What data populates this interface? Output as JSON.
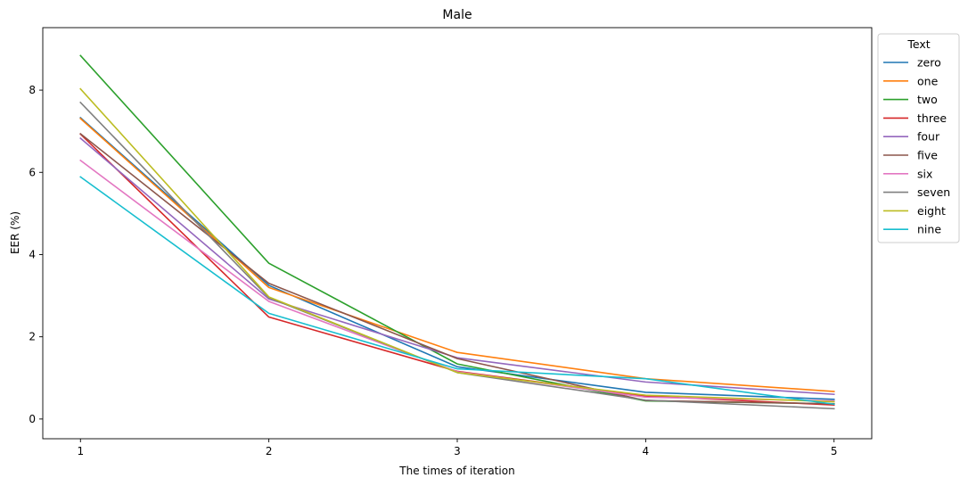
{
  "chart_data": {
    "type": "line",
    "title": "Male",
    "xlabel": "The times of iteration",
    "ylabel": "EER (%)",
    "x": [
      1,
      2,
      3,
      4,
      5
    ],
    "xticks": [
      "1",
      "2",
      "3",
      "4",
      "5"
    ],
    "yticks": [
      "0",
      "2",
      "4",
      "6",
      "8"
    ],
    "xlim": [
      0.8,
      5.2
    ],
    "ylim": [
      -0.48,
      9.52
    ],
    "grid": false,
    "legend_title": "Text",
    "legend_position": "outside-right-top",
    "series": [
      {
        "name": "zero",
        "color": "#1f77b4",
        "values": [
          7.33,
          3.25,
          1.27,
          0.65,
          0.48
        ]
      },
      {
        "name": "one",
        "color": "#ff7f0e",
        "values": [
          7.31,
          3.2,
          1.62,
          0.98,
          0.67
        ]
      },
      {
        "name": "two",
        "color": "#2ca02c",
        "values": [
          8.84,
          3.79,
          1.34,
          0.44,
          0.37
        ]
      },
      {
        "name": "three",
        "color": "#d62728",
        "values": [
          6.93,
          2.48,
          1.16,
          0.56,
          0.34
        ]
      },
      {
        "name": "four",
        "color": "#9467bd",
        "values": [
          6.83,
          2.92,
          1.49,
          0.9,
          0.6
        ]
      },
      {
        "name": "five",
        "color": "#8c564b",
        "values": [
          6.94,
          3.3,
          1.47,
          0.45,
          0.37
        ]
      },
      {
        "name": "six",
        "color": "#e377c2",
        "values": [
          6.29,
          2.86,
          1.15,
          0.53,
          0.44
        ]
      },
      {
        "name": "seven",
        "color": "#7f7f7f",
        "values": [
          7.7,
          2.95,
          1.13,
          0.46,
          0.25
        ]
      },
      {
        "name": "eight",
        "color": "#bcbd22",
        "values": [
          8.03,
          2.97,
          1.13,
          0.58,
          0.42
        ]
      },
      {
        "name": "nine",
        "color": "#17becf",
        "values": [
          5.89,
          2.57,
          1.22,
          0.98,
          0.36
        ]
      }
    ]
  }
}
